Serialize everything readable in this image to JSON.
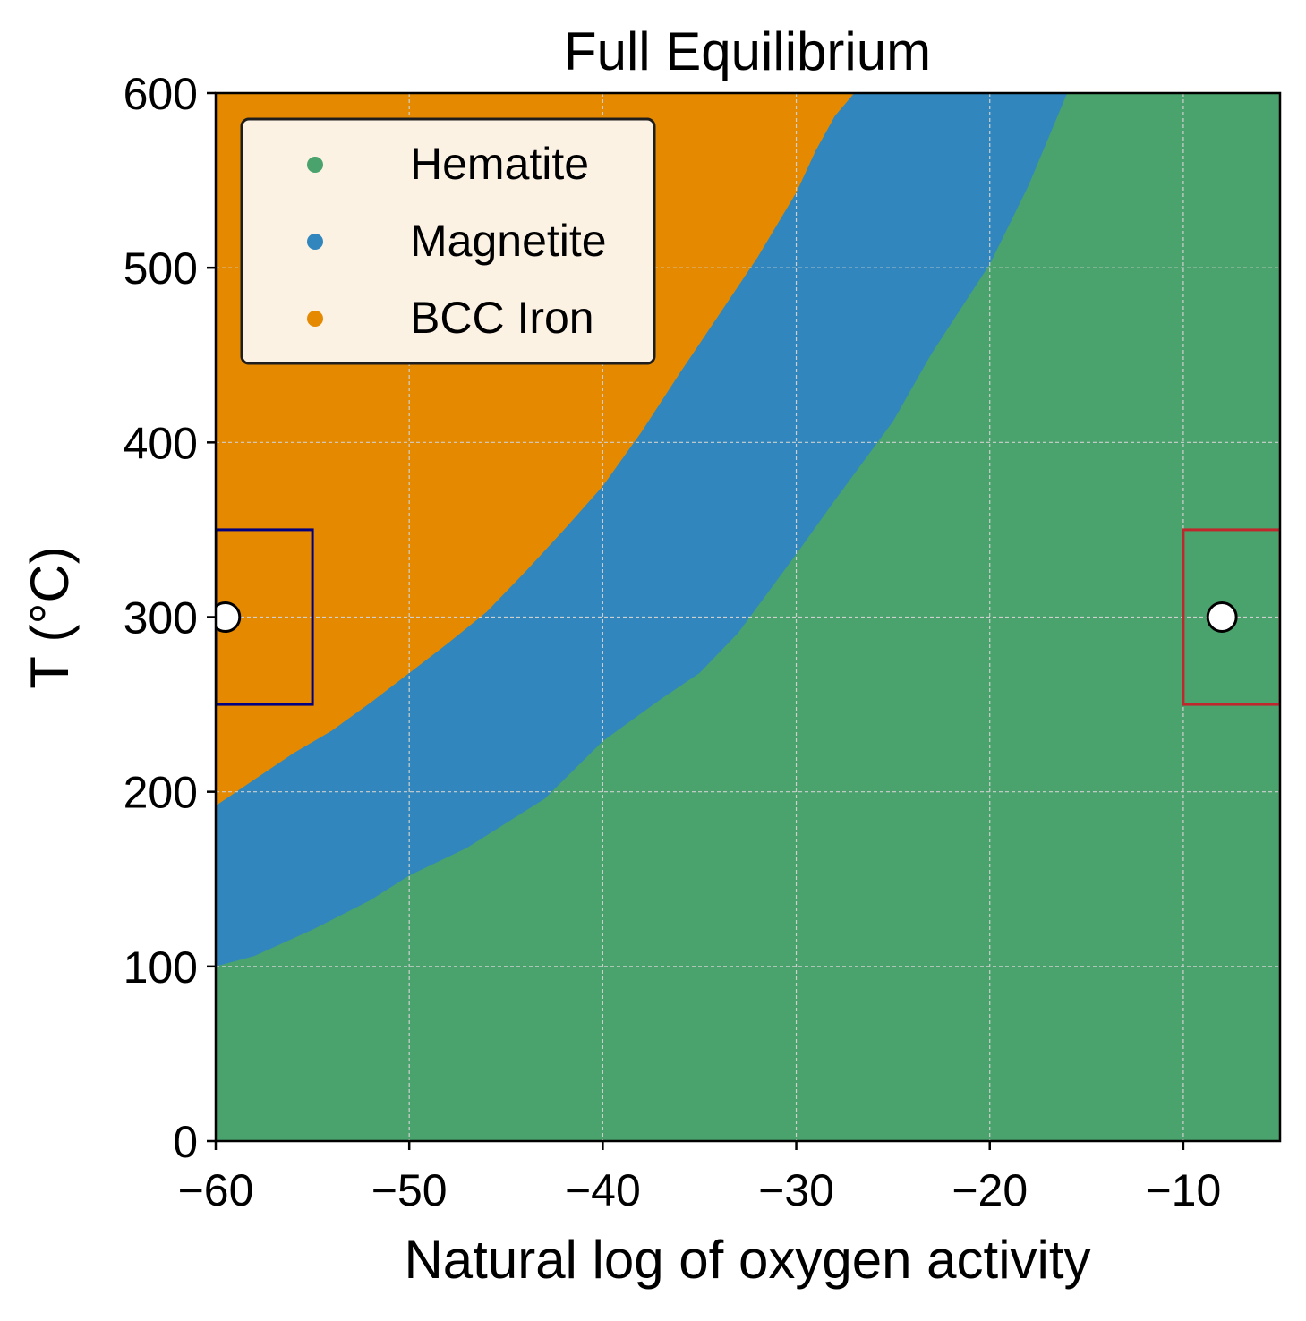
{
  "chart_data": {
    "type": "area",
    "title": "Full Equilibrium",
    "xlabel": "Natural log of oxygen activity",
    "ylabel": "T (°C)",
    "xlim": [
      -60,
      -5
    ],
    "ylim": [
      0,
      600
    ],
    "xticks": [
      -60,
      -50,
      -40,
      -30,
      -20,
      -10
    ],
    "xtick_labels": [
      "−60",
      "−50",
      "−40",
      "−30",
      "−20",
      "−10"
    ],
    "yticks": [
      0,
      100,
      200,
      300,
      400,
      500,
      600
    ],
    "ytick_labels": [
      "0",
      "100",
      "200",
      "300",
      "400",
      "500",
      "600"
    ],
    "grid": true,
    "legend_position": "top-left",
    "series": [
      {
        "name": "Hematite",
        "color": "#4aa36c"
      },
      {
        "name": "Magnetite",
        "color": "#3187bd"
      },
      {
        "name": "BCC Iron",
        "color": "#e58a00"
      }
    ],
    "boundaries": {
      "hematite_magnetite": {
        "x": [
          -60,
          -58,
          -55,
          -52,
          -50,
          -47,
          -45,
          -43,
          -40,
          -37,
          -35,
          -33,
          -30,
          -28,
          -25,
          -23,
          -20,
          -18,
          -16
        ],
        "y": [
          100,
          106,
          121,
          138,
          152,
          168,
          182,
          196,
          229,
          253,
          268,
          291,
          336,
          367,
          412,
          451,
          502,
          547,
          600
        ]
      },
      "magnetite_bcc": {
        "x": [
          -60,
          -58,
          -56,
          -54,
          -52,
          -50,
          -48,
          -46,
          -44,
          -42,
          -40,
          -38,
          -36,
          -34,
          -32,
          -30,
          -29,
          -28,
          -27
        ],
        "y": [
          192,
          207,
          222,
          235,
          251,
          268,
          285,
          303,
          326,
          350,
          375,
          406,
          440,
          473,
          506,
          543,
          567,
          587,
          600
        ]
      }
    },
    "regions": [
      {
        "x_range": [
          -60,
          -55
        ],
        "y_range": [
          250,
          350
        ],
        "edge_color": "#000080"
      },
      {
        "x_range": [
          -10,
          -5
        ],
        "y_range": [
          250,
          350
        ],
        "edge_color": "#c0272d"
      }
    ],
    "markers": [
      {
        "x": -59.5,
        "y": 300
      },
      {
        "x": -8.0,
        "y": 300
      }
    ]
  }
}
